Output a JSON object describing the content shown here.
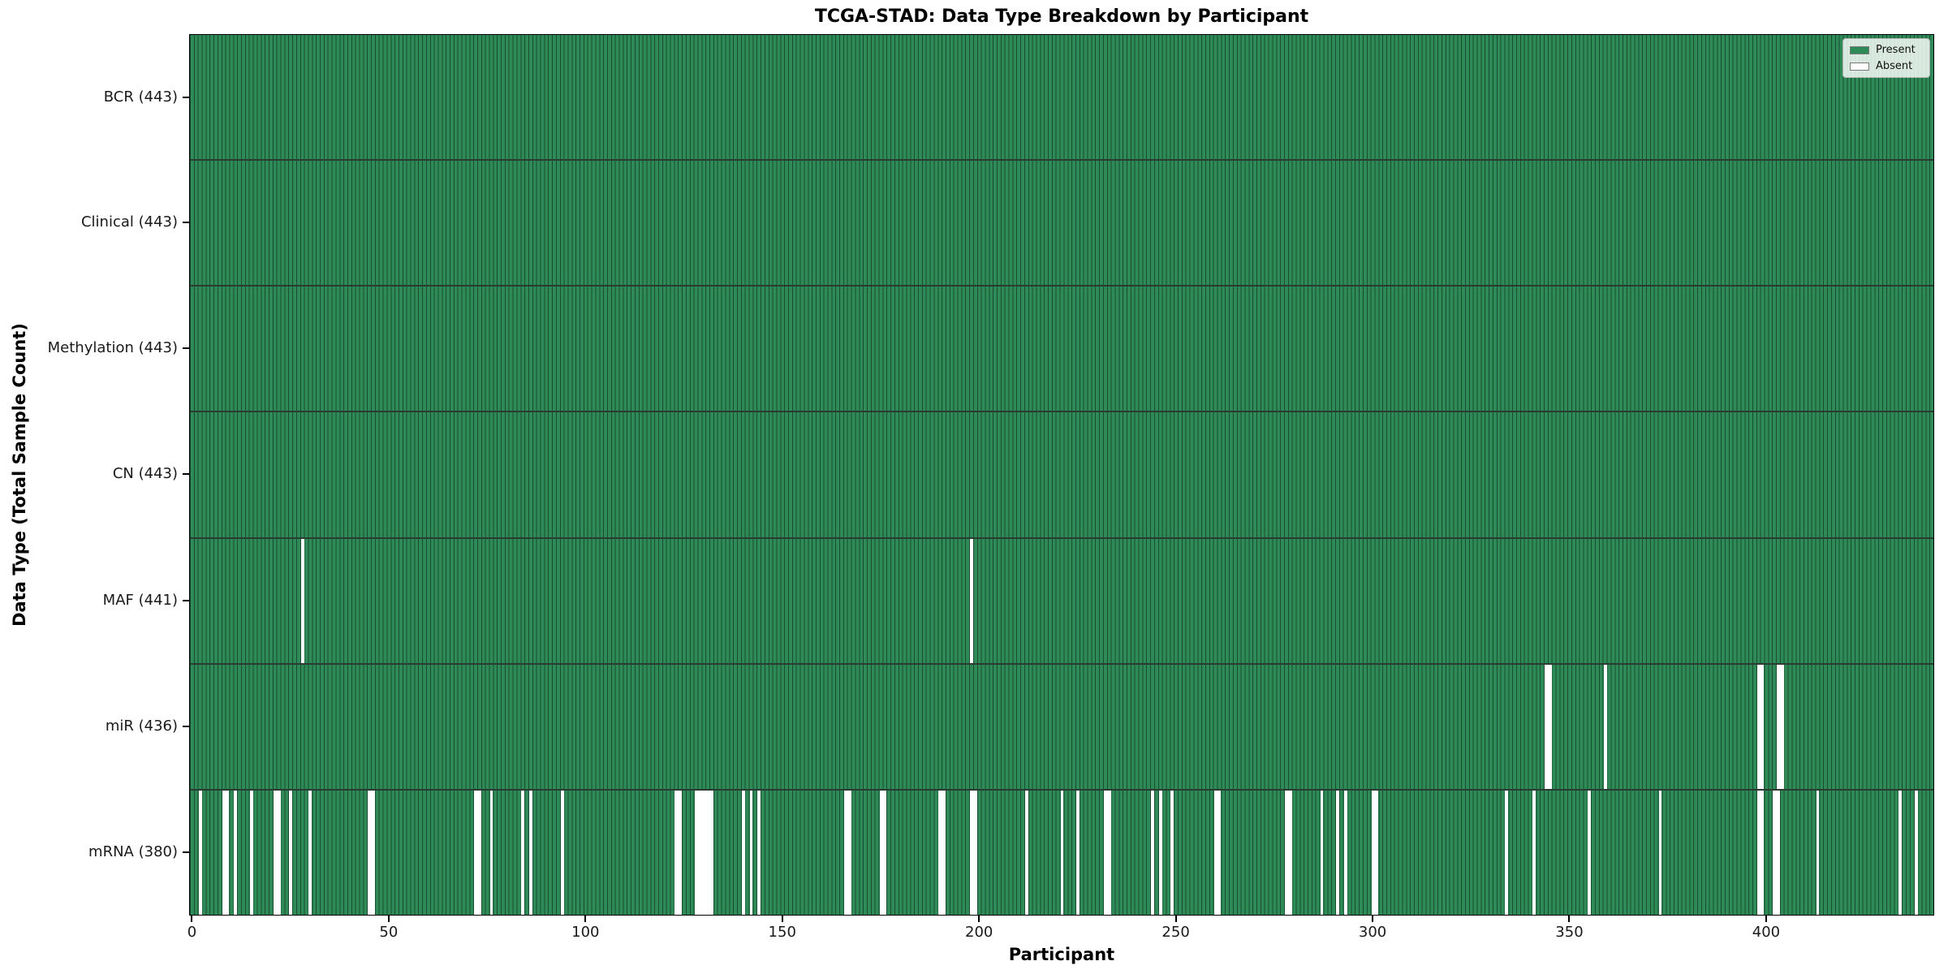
{
  "chart_data": {
    "type": "heatmap",
    "title": "TCGA-STAD: Data Type Breakdown by Participant",
    "xlabel": "Participant",
    "ylabel": "Data Type (Total Sample Count)",
    "n_participants": 443,
    "xlim": [
      -0.5,
      442.5
    ],
    "x_ticks": [
      0,
      50,
      100,
      150,
      200,
      250,
      300,
      350,
      400
    ],
    "grid": false,
    "legend_position": "upper right",
    "colors": {
      "present": "#2e8b57",
      "absent": "#ffffff",
      "cell_edge": "rgba(0,0,0,0.45)"
    },
    "legend": [
      {
        "key": "present",
        "label": "Present",
        "color": "#2e8b57"
      },
      {
        "key": "absent",
        "label": "Absent",
        "color": "#ffffff"
      }
    ],
    "rows": [
      {
        "key": "bcr",
        "data_type": "BCR",
        "label": "BCR (443)",
        "present_count": 443,
        "absent_participants": []
      },
      {
        "key": "clinical",
        "data_type": "Clinical",
        "label": "Clinical (443)",
        "present_count": 443,
        "absent_participants": []
      },
      {
        "key": "methylation",
        "data_type": "Methylation",
        "label": "Methylation (443)",
        "present_count": 443,
        "absent_participants": []
      },
      {
        "key": "cn",
        "data_type": "CN",
        "label": "CN (443)",
        "present_count": 443,
        "absent_participants": []
      },
      {
        "key": "maf",
        "data_type": "MAF",
        "label": "MAF (441)",
        "present_count": 441,
        "absent_participants": [
          28,
          198
        ]
      },
      {
        "key": "mir",
        "data_type": "miR",
        "label": "miR (436)",
        "present_count": 436,
        "absent_participants": [
          344,
          345,
          359,
          398,
          399,
          403,
          404
        ]
      },
      {
        "key": "mrna",
        "data_type": "mRNA",
        "label": "mRNA (380)",
        "present_count": 380,
        "absent_participants": [
          2,
          8,
          9,
          11,
          15,
          21,
          22,
          25,
          30,
          45,
          46,
          72,
          73,
          76,
          84,
          86,
          94,
          123,
          124,
          128,
          129,
          130,
          131,
          132,
          140,
          142,
          144,
          166,
          167,
          175,
          176,
          190,
          191,
          198,
          199,
          212,
          221,
          225,
          232,
          233,
          244,
          246,
          249,
          260,
          261,
          278,
          279,
          287,
          291,
          293,
          300,
          301,
          334,
          341,
          355,
          373,
          398,
          399,
          402,
          403,
          413,
          434,
          438
        ]
      }
    ]
  }
}
